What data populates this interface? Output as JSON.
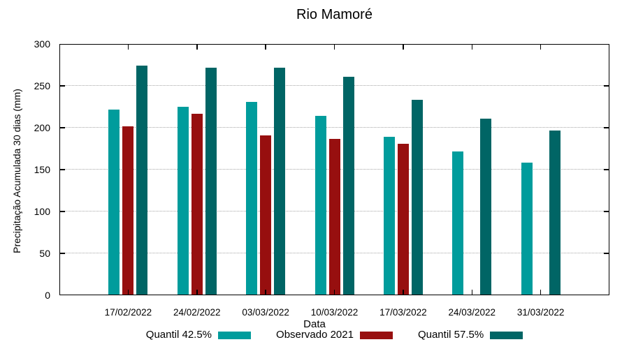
{
  "chart_data": {
    "type": "bar",
    "title": "Rio Mamoré",
    "xlabel": "Data",
    "ylabel": "Precipitação Acumulada 30 dias (mm)",
    "categories": [
      "17/02/2022",
      "24/02/2022",
      "03/03/2022",
      "10/03/2022",
      "17/03/2022",
      "24/03/2022",
      "31/03/2022"
    ],
    "series": [
      {
        "name": "Quantil 42.5%",
        "color": "#009C9C",
        "values": [
          222,
          225,
          231,
          214,
          189,
          172,
          158
        ]
      },
      {
        "name": "Observado 2021",
        "color": "#970F0F",
        "values": [
          202,
          217,
          191,
          187,
          181,
          null,
          null
        ]
      },
      {
        "name": "Quantil 57.5%",
        "color": "#006565",
        "values": [
          274,
          272,
          272,
          261,
          233,
          211,
          197
        ]
      }
    ],
    "ylim": [
      0,
      300
    ],
    "yticks": [
      0,
      50,
      100,
      150,
      200,
      250,
      300
    ],
    "grid": "horizontal-dotted",
    "legend_position": "bottom",
    "background": "#ffffff",
    "axis_color": "#000000",
    "grid_color": "#a6a6a6"
  }
}
